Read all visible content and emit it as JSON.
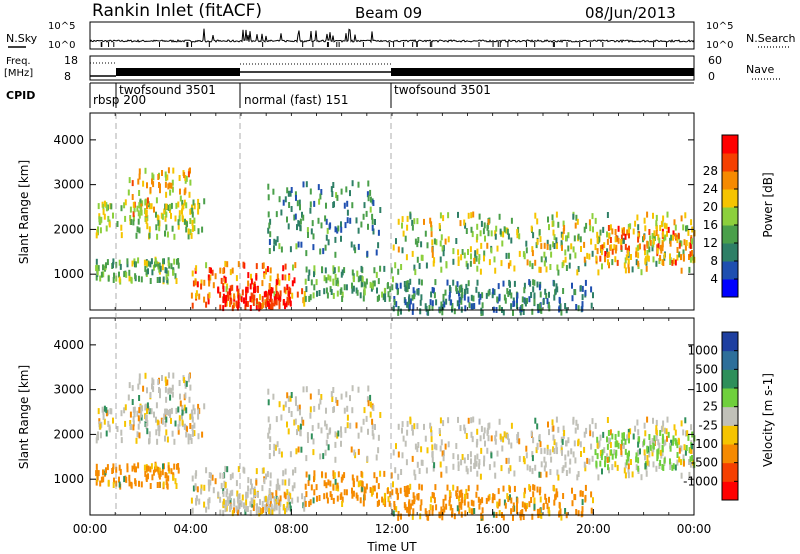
{
  "header": {
    "station": "Rankin Inlet (fitACF)",
    "beam": "Beam 09",
    "date": "08/Jun/2013"
  },
  "noise_panel": {
    "left_label": "N.Sky",
    "right_label": "N.Search",
    "left_ticks": [
      "10^5",
      "10^0"
    ],
    "right_ticks": [
      "10^5",
      "10^0"
    ]
  },
  "freq_panel": {
    "left_label_line1": "Freq.",
    "left_label_line2": "[MHz]",
    "left_ticks": [
      "18",
      "8"
    ],
    "right_label": "Nave",
    "right_ticks": [
      "60",
      "0"
    ]
  },
  "cpid_panel": {
    "label": "CPID",
    "segments": [
      "rbsp 200",
      "twofsound 3501",
      "normal (fast) 151",
      "twofsound 3501"
    ]
  },
  "x_axis": {
    "ticks": [
      "00:00",
      "04:00",
      "08:00",
      "12:00",
      "16:00",
      "20:00",
      "00:00"
    ],
    "label": "Time UT"
  },
  "chart_data": [
    {
      "type": "heatmap",
      "name": "power",
      "ylabel": "Slant Range [km]",
      "yticks": [
        "1000",
        "2000",
        "3000",
        "4000"
      ],
      "ylim": [
        200,
        4600
      ],
      "xlim_hours": [
        0,
        24
      ],
      "colorbar": {
        "label": "Power [dB]",
        "ticks": [
          "4",
          "8",
          "12",
          "16",
          "20",
          "24",
          "28"
        ],
        "range": [
          0,
          30
        ],
        "colors": [
          "#0000ff",
          "#1f4fb0",
          "#2e7f66",
          "#4a9f4a",
          "#8ccf3c",
          "#f5c400",
          "#f58a00",
          "#f54000",
          "#ff0000"
        ]
      }
    },
    {
      "type": "heatmap",
      "name": "velocity",
      "ylabel": "Slant Range [km]",
      "yticks": [
        "1000",
        "2000",
        "3000",
        "4000"
      ],
      "ylim": [
        200,
        4600
      ],
      "xlim_hours": [
        0,
        24
      ],
      "colorbar": {
        "label": "Velocity [m s-1]",
        "ticks": [
          "1000",
          "500",
          "100",
          "25",
          "-25",
          "-100",
          "-500",
          "-1000"
        ],
        "colors": [
          "#1e3fa0",
          "#2e6f9a",
          "#2e8f5a",
          "#6fcf3c",
          "#c0c0b8",
          "#f5c400",
          "#f58a00",
          "#f54000",
          "#ff0000"
        ]
      }
    }
  ]
}
